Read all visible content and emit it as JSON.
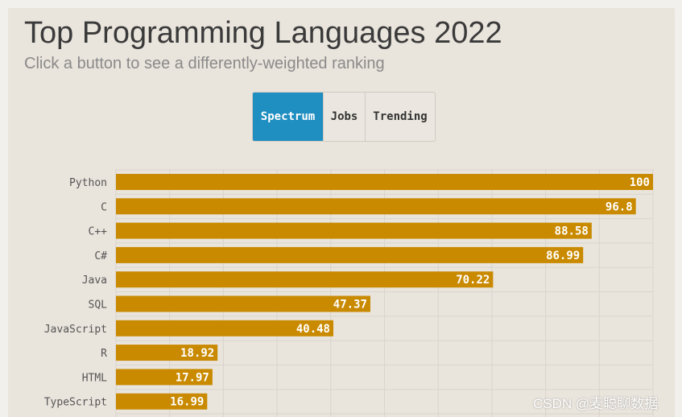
{
  "header": {
    "title": "Top Programming Languages 2022",
    "subtitle": "Click a button to see a differently-weighted ranking"
  },
  "buttons": [
    {
      "label": "Spectrum",
      "active": true
    },
    {
      "label": "Jobs",
      "active": false
    },
    {
      "label": "Trending",
      "active": false
    }
  ],
  "colors": {
    "bar": "#c98a00",
    "active_button": "#1f8ec0",
    "grid": "#d9d4cc"
  },
  "chart_data": {
    "type": "bar",
    "orientation": "horizontal",
    "categories": [
      "Python",
      "C",
      "C++",
      "C#",
      "Java",
      "SQL",
      "JavaScript",
      "R",
      "HTML",
      "TypeScript"
    ],
    "values": [
      100,
      96.8,
      88.58,
      86.99,
      70.22,
      47.37,
      40.48,
      18.92,
      17.97,
      16.99
    ],
    "xlim": [
      0,
      100
    ],
    "grid": true
  },
  "watermark": "CSDN @麦聪聊数据"
}
